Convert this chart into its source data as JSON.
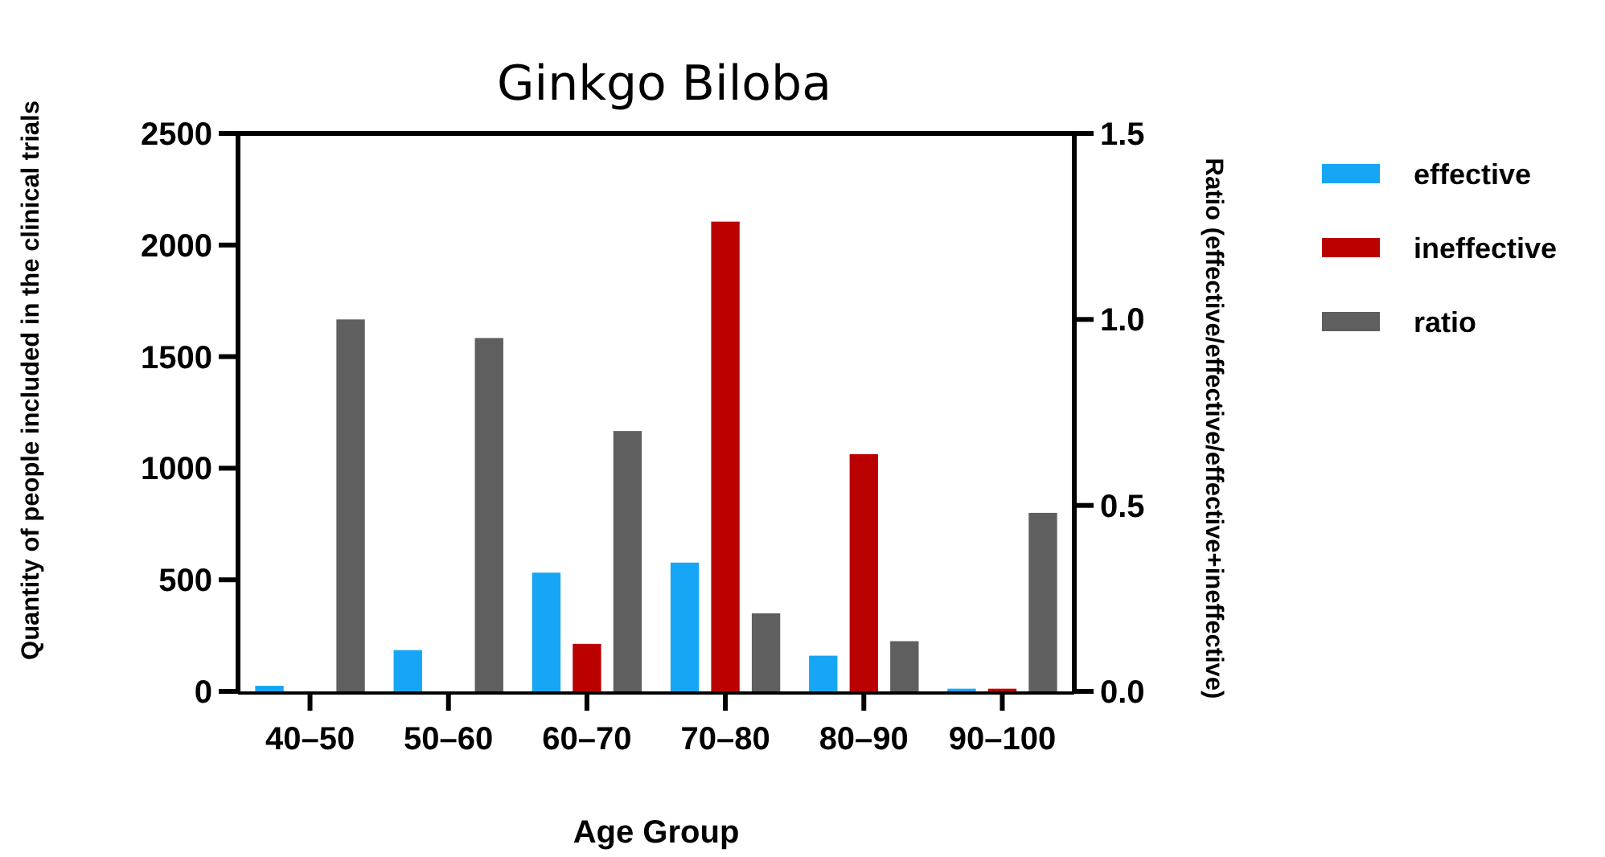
{
  "chart_data": {
    "type": "bar",
    "title": "Ginkgo Biloba",
    "xlabel": "Age Group",
    "ylabel": "Quantity of people included in the clinical trials",
    "y2label": "Ratio (effective/effective/effective+ineffective)",
    "categories": [
      "40–50",
      "50–60",
      "60–70",
      "70–80",
      "80–90",
      "90–100"
    ],
    "series": [
      {
        "name": "effective",
        "color": "#16a6f5",
        "values": [
          25,
          185,
          532,
          577,
          160,
          12
        ]
      },
      {
        "name": "ineffective",
        "color": "#bb0000",
        "values": [
          0,
          0,
          213,
          2105,
          1063,
          12
        ]
      },
      {
        "name": "ratio",
        "color": "#5f5f5f",
        "values": [
          1.0,
          0.95,
          0.7,
          0.21,
          0.135,
          0.48
        ],
        "axis": "y2"
      }
    ],
    "ylim": [
      0,
      2500
    ],
    "yticks": [
      0,
      500,
      1000,
      1500,
      2000,
      2500
    ],
    "y2lim": [
      0,
      1.5
    ],
    "y2ticks": [
      {
        "value": 0,
        "label": "0.0"
      },
      {
        "value": 0.5,
        "label": "0.5"
      },
      {
        "value": 1,
        "label": "1.0"
      },
      {
        "value": 1.5,
        "label": "1.5"
      }
    ],
    "grid": false,
    "legend": "top right"
  }
}
